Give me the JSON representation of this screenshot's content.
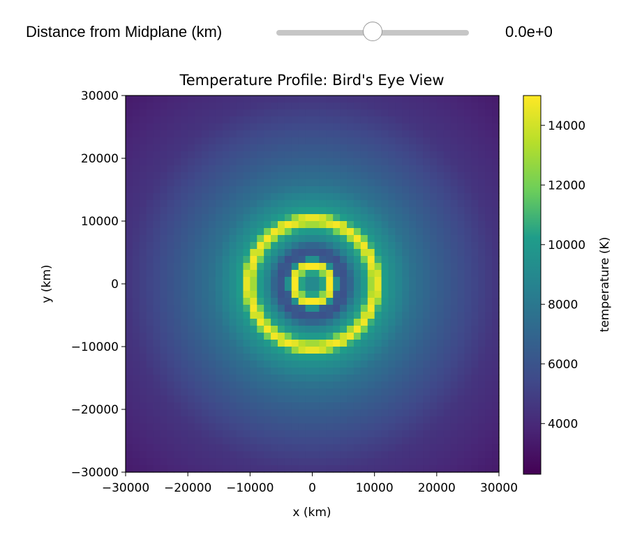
{
  "controls": {
    "slider_label": "Distance from Midplane (km)",
    "slider_value_text": "0.0e+0",
    "slider_position_fraction": 0.5
  },
  "colormap": {
    "name": "viridis",
    "stops": [
      "#440154",
      "#482777",
      "#3f4a8a",
      "#31678e",
      "#26838f",
      "#1f9d8a",
      "#6cce5a",
      "#b6de2b",
      "#fee825"
    ]
  },
  "chart_data": {
    "type": "heatmap",
    "title": "Temperature Profile: Bird's Eye View",
    "xlabel": "x (km)",
    "ylabel": "y (km)",
    "xlim": [
      -30000,
      30000
    ],
    "ylim": [
      -30000,
      30000
    ],
    "x_ticks": [
      -30000,
      -20000,
      -10000,
      0,
      10000,
      20000,
      30000
    ],
    "x_tick_labels": [
      "−30000",
      "−20000",
      "−10000",
      "0",
      "10000",
      "20000",
      "30000"
    ],
    "y_ticks": [
      30000,
      20000,
      10000,
      0,
      -10000,
      -20000,
      -30000
    ],
    "y_tick_labels": [
      "30000",
      "20000",
      "10000",
      "0",
      "−10000",
      "−20000",
      "−30000"
    ],
    "colorbar": {
      "label": "temperature (K)",
      "range": [
        2300,
        15000
      ],
      "ticks": [
        4000,
        6000,
        8000,
        10000,
        12000,
        14000
      ],
      "tick_labels": [
        "4000",
        "6000",
        "8000",
        "10000",
        "12000",
        "14000"
      ]
    },
    "radial_profile": {
      "r_km": [
        0,
        1200,
        2200,
        2800,
        3500,
        4200,
        5500,
        7000,
        8800,
        10000,
        10600,
        11300,
        12500,
        16000,
        20000,
        25000,
        30000,
        43000
      ],
      "temperature_K": [
        9200,
        9000,
        11500,
        15000,
        14000,
        6500,
        5800,
        8500,
        10500,
        15000,
        14500,
        10500,
        9500,
        7700,
        6600,
        5500,
        4500,
        3300
      ]
    },
    "grid": false,
    "legend": "none"
  }
}
